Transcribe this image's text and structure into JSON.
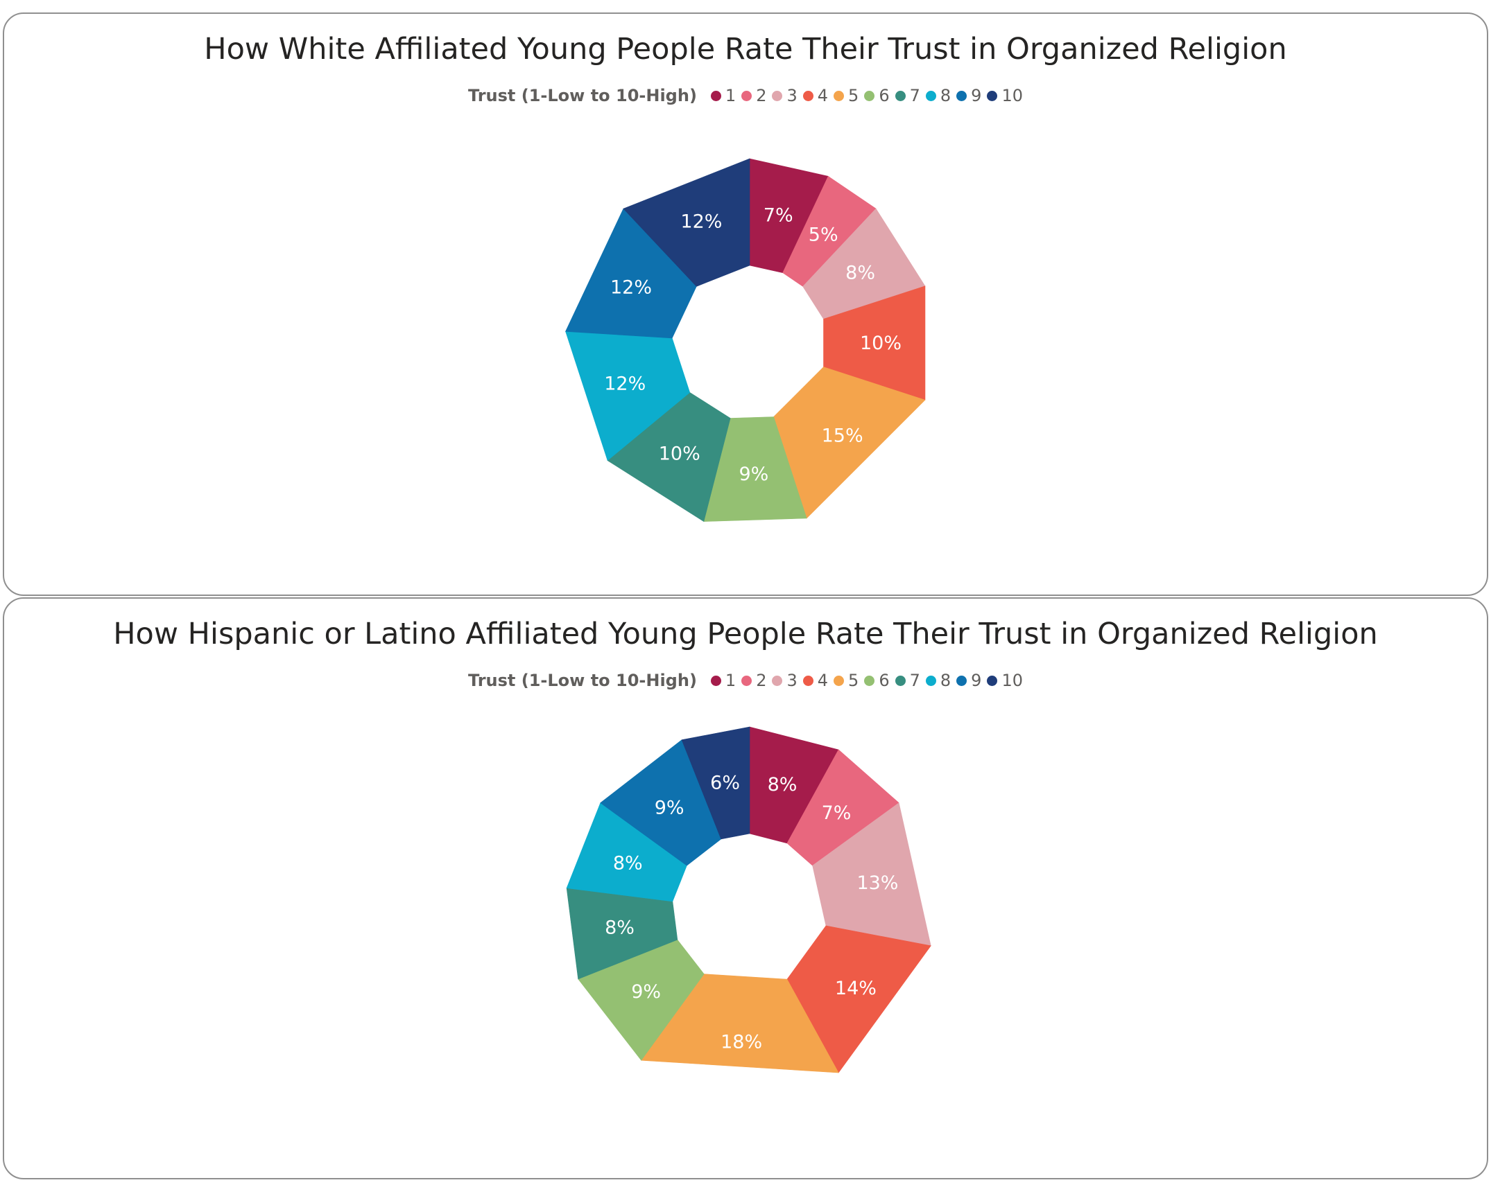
{
  "chart_data": [
    {
      "type": "pie",
      "title": "How White Affiliated Young People Rate Their Trust in Organized Religion",
      "legend_title": "Trust (1-Low to 10-High)",
      "legend_position": "top-center",
      "categories": [
        "1",
        "2",
        "3",
        "4",
        "5",
        "6",
        "7",
        "8",
        "9",
        "10"
      ],
      "values": [
        7,
        5,
        8,
        10,
        15,
        9,
        10,
        12,
        12,
        12
      ],
      "labels": [
        "7%",
        "5%",
        "8%",
        "10%",
        "15%",
        "9%",
        "10%",
        "12%",
        "12%",
        "12%"
      ],
      "colors": [
        "#A51C4B",
        "#E8677E",
        "#E0A6AD",
        "#EE5B47",
        "#F4A44C",
        "#94C072",
        "#378E80",
        "#0CADCD",
        "#0E71AE",
        "#1F3D7A"
      ]
    },
    {
      "type": "pie",
      "title": "How Hispanic or Latino Affiliated Young People Rate Their Trust in Organized Religion",
      "legend_title": "Trust (1-Low to 10-High)",
      "legend_position": "top-center",
      "categories": [
        "1",
        "2",
        "3",
        "4",
        "5",
        "6",
        "7",
        "8",
        "9",
        "10"
      ],
      "values": [
        8,
        7,
        13,
        14,
        18,
        9,
        8,
        8,
        9,
        6
      ],
      "labels": [
        "8%",
        "7%",
        "13%",
        "14%",
        "18%",
        "9%",
        "8%",
        "8%",
        "9%",
        "6%"
      ],
      "colors": [
        "#A51C4B",
        "#E8677E",
        "#E0A6AD",
        "#EE5B47",
        "#F4A44C",
        "#94C072",
        "#378E80",
        "#0CADCD",
        "#0E71AE",
        "#1F3D7A"
      ]
    }
  ]
}
